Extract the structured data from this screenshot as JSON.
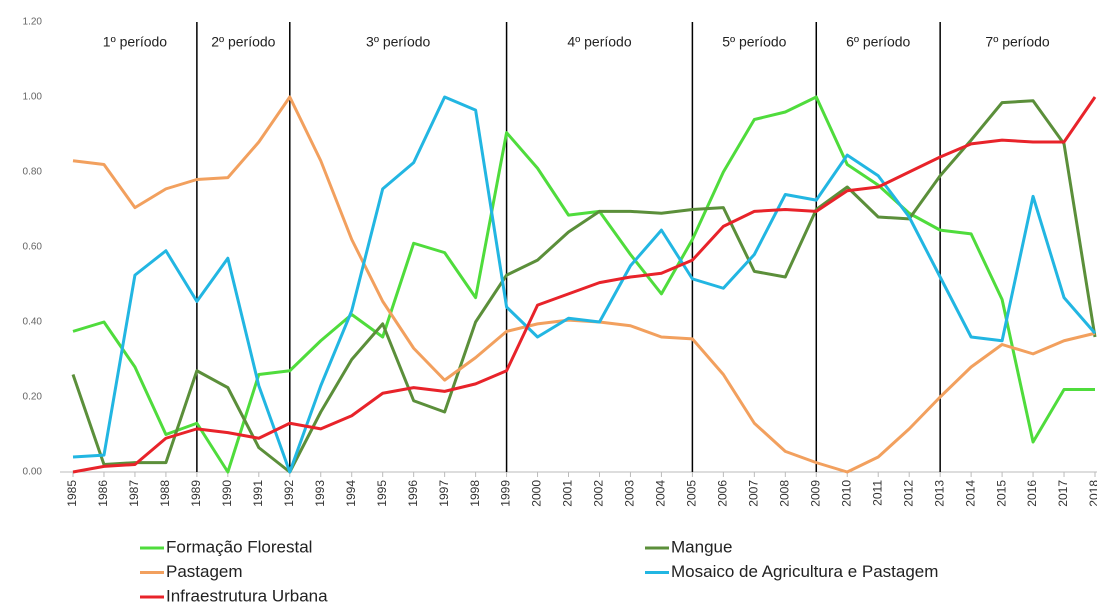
{
  "chart_data": {
    "type": "line",
    "x": [
      1985,
      1986,
      1987,
      1988,
      1989,
      1990,
      1991,
      1992,
      1993,
      1994,
      1995,
      1996,
      1997,
      1998,
      1999,
      2000,
      2001,
      2002,
      2003,
      2004,
      2005,
      2006,
      2007,
      2008,
      2009,
      2010,
      2011,
      2012,
      2013,
      2014,
      2015,
      2016,
      2017,
      2018
    ],
    "xlim": [
      1985,
      2018
    ],
    "ylim": [
      0,
      1.2
    ],
    "yticks": [
      {
        "value": 0,
        "label": "0.00"
      },
      {
        "value": 0.2,
        "label": "0.20"
      },
      {
        "value": 0.4,
        "label": "0.40"
      },
      {
        "value": 0.6,
        "label": "0.60"
      },
      {
        "value": 0.8,
        "label": "0.80"
      },
      {
        "value": 1,
        "label": "1.00"
      },
      {
        "value": 1.2,
        "label": "1.20"
      }
    ],
    "grid": false,
    "periods": [
      {
        "label": "1º período",
        "start": 1985,
        "end": 1989
      },
      {
        "label": "2º período",
        "start": 1989,
        "end": 1992
      },
      {
        "label": "3º período",
        "start": 1992,
        "end": 1999
      },
      {
        "label": "4º período",
        "start": 1999,
        "end": 2005
      },
      {
        "label": "5º período",
        "start": 2005,
        "end": 2009
      },
      {
        "label": "6º período",
        "start": 2009,
        "end": 2013
      },
      {
        "label": "7º período",
        "start": 2013,
        "end": 2018
      }
    ],
    "series": [
      {
        "name": "Formação Florestal",
        "color": "#4fdc3c",
        "values": [
          0.375,
          0.4,
          0.28,
          0.1,
          0.13,
          0.0,
          0.26,
          0.27,
          0.35,
          0.42,
          0.36,
          0.61,
          0.585,
          0.465,
          0.905,
          0.81,
          0.685,
          0.695,
          0.58,
          0.475,
          0.62,
          0.8,
          0.94,
          0.96,
          1.0,
          0.82,
          0.765,
          0.69,
          0.645,
          0.635,
          0.46,
          0.08,
          0.22,
          0.22
        ]
      },
      {
        "name": "Mangue",
        "color": "#5b8f3a",
        "values": [
          0.26,
          0.02,
          0.025,
          0.025,
          0.27,
          0.225,
          0.065,
          0.0,
          0.16,
          0.3,
          0.395,
          0.19,
          0.16,
          0.4,
          0.525,
          0.565,
          0.64,
          0.695,
          0.695,
          0.69,
          0.7,
          0.705,
          0.535,
          0.52,
          0.7,
          0.76,
          0.68,
          0.675,
          0.79,
          0.885,
          0.985,
          0.99,
          0.875,
          0.36
        ]
      },
      {
        "name": "Pastagem",
        "color": "#f2a05e",
        "values": [
          0.83,
          0.82,
          0.705,
          0.755,
          0.78,
          0.785,
          0.88,
          1.0,
          0.83,
          0.62,
          0.455,
          0.33,
          0.245,
          0.305,
          0.375,
          0.395,
          0.405,
          0.4,
          0.39,
          0.36,
          0.355,
          0.26,
          0.13,
          0.055,
          0.025,
          0.0,
          0.04,
          0.115,
          0.2,
          0.28,
          0.34,
          0.315,
          0.35,
          0.37
        ]
      },
      {
        "name": "Mosaico de Agricultura e Pastagem",
        "color": "#22b6e2",
        "values": [
          0.04,
          0.045,
          0.525,
          0.59,
          0.455,
          0.57,
          0.23,
          0.0,
          0.23,
          0.43,
          0.755,
          0.825,
          1.0,
          0.965,
          0.44,
          0.36,
          0.41,
          0.4,
          0.55,
          0.645,
          0.515,
          0.49,
          0.58,
          0.74,
          0.725,
          0.845,
          0.79,
          0.68,
          0.52,
          0.36,
          0.35,
          0.735,
          0.465,
          0.37
        ]
      },
      {
        "name": "Infraestrutura Urbana",
        "color": "#e8232a",
        "values": [
          0.0,
          0.015,
          0.02,
          0.09,
          0.115,
          0.105,
          0.09,
          0.13,
          0.115,
          0.15,
          0.21,
          0.225,
          0.215,
          0.235,
          0.27,
          0.445,
          0.475,
          0.505,
          0.52,
          0.53,
          0.565,
          0.655,
          0.695,
          0.7,
          0.695,
          0.75,
          0.76,
          0.8,
          0.84,
          0.875,
          0.885,
          0.88,
          0.88,
          1.0
        ]
      }
    ]
  }
}
